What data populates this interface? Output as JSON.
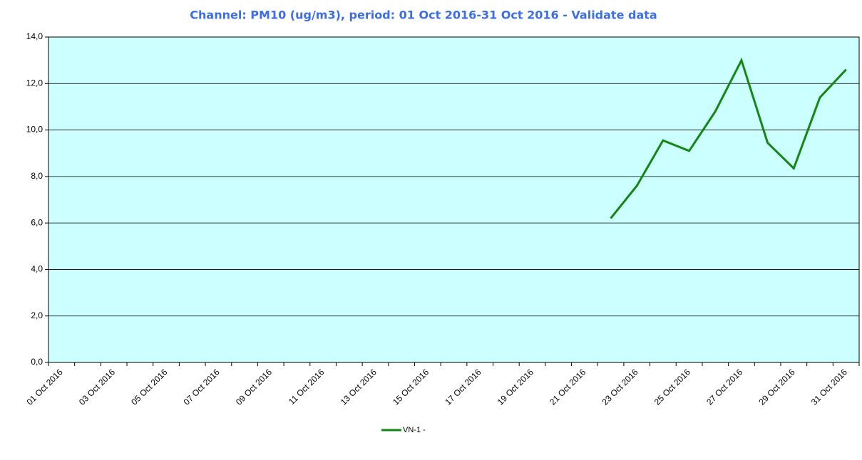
{
  "chart_data": {
    "type": "line",
    "title": "Channel: PM10 (ug/m3), period: 01 Oct 2016-31 Oct 2016 - Validate data",
    "categories": [
      "01 Oct 2016",
      null,
      "03 Oct 2016",
      null,
      "05 Oct 2016",
      null,
      "07 Oct 2016",
      null,
      "09 Oct 2016",
      null,
      "11 Oct 2016",
      null,
      "13 Oct 2016",
      null,
      "15 Oct 2016",
      null,
      "17 Oct 2016",
      null,
      "19 Oct 2016",
      null,
      "21 Oct 2016",
      null,
      "23 Oct 2016",
      null,
      "25 Oct 2016",
      null,
      "27 Oct 2016",
      null,
      "29 Oct 2016",
      null,
      "31 Oct 2016"
    ],
    "series": [
      {
        "name": "VN-1 -",
        "color": "#138613",
        "values": [
          null,
          null,
          null,
          null,
          null,
          null,
          null,
          null,
          null,
          null,
          null,
          null,
          null,
          null,
          null,
          null,
          null,
          null,
          null,
          null,
          null,
          6.2,
          7.6,
          9.55,
          9.1,
          10.8,
          13.0,
          9.45,
          8.35,
          11.4,
          12.6
        ]
      }
    ],
    "ylim": [
      0,
      14
    ],
    "yticks": [
      {
        "value": 0,
        "label": "0,0"
      },
      {
        "value": 2,
        "label": "2,0"
      },
      {
        "value": 4,
        "label": "4,0"
      },
      {
        "value": 6,
        "label": "6,0"
      },
      {
        "value": 8,
        "label": "8,0"
      },
      {
        "value": 10,
        "label": "10,0"
      },
      {
        "value": 12,
        "label": "12,0"
      },
      {
        "value": 14,
        "label": "14,0"
      }
    ],
    "grid": true,
    "legend": "bottom"
  }
}
